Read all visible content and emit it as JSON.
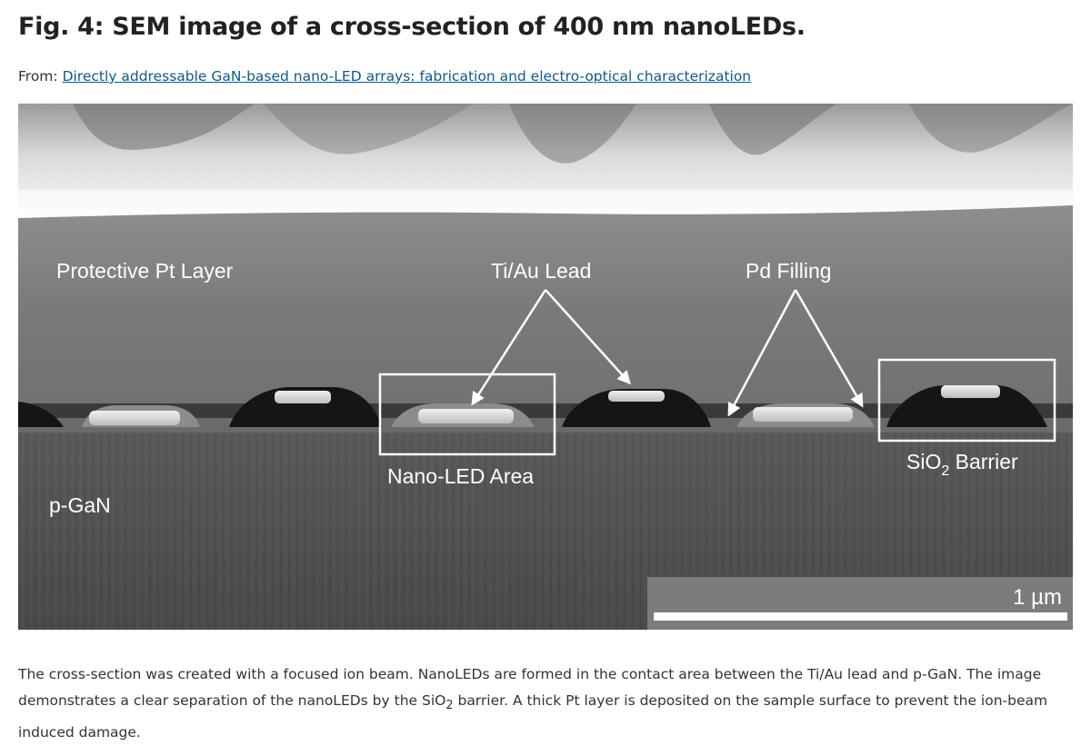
{
  "figure": {
    "title": "Fig. 4: SEM image of a cross-section of 400 nm nanoLEDs.",
    "from_label": "From:",
    "source_link": "Directly addressable GaN-based nano-LED arrays: fabrication and electro-optical characterization"
  },
  "image_labels": {
    "protective_layer": "Protective Pt Layer",
    "lead": "Ti/Au Lead",
    "filling": "Pd Filling",
    "nanoled_area": "Nano-LED Area",
    "sio2_prefix": "SiO",
    "sio2_sub": "2",
    "sio2_suffix": " Barrier",
    "pgan": "p-GaN",
    "scale_bar": "1 µm"
  },
  "caption": {
    "part1": "The cross-section was created with a focused ion beam. NanoLEDs are formed in the contact area between the Ti/Au lead and p-GaN. The image demonstrates a clear separation of the nanoLEDs by the SiO",
    "sub": "2",
    "part2": " barrier. A thick Pt layer is deposited on the sample surface to prevent the ion-beam induced damage."
  },
  "colors": {
    "title": "#222222",
    "link": "#0b5a8f",
    "caption": "#333333"
  }
}
